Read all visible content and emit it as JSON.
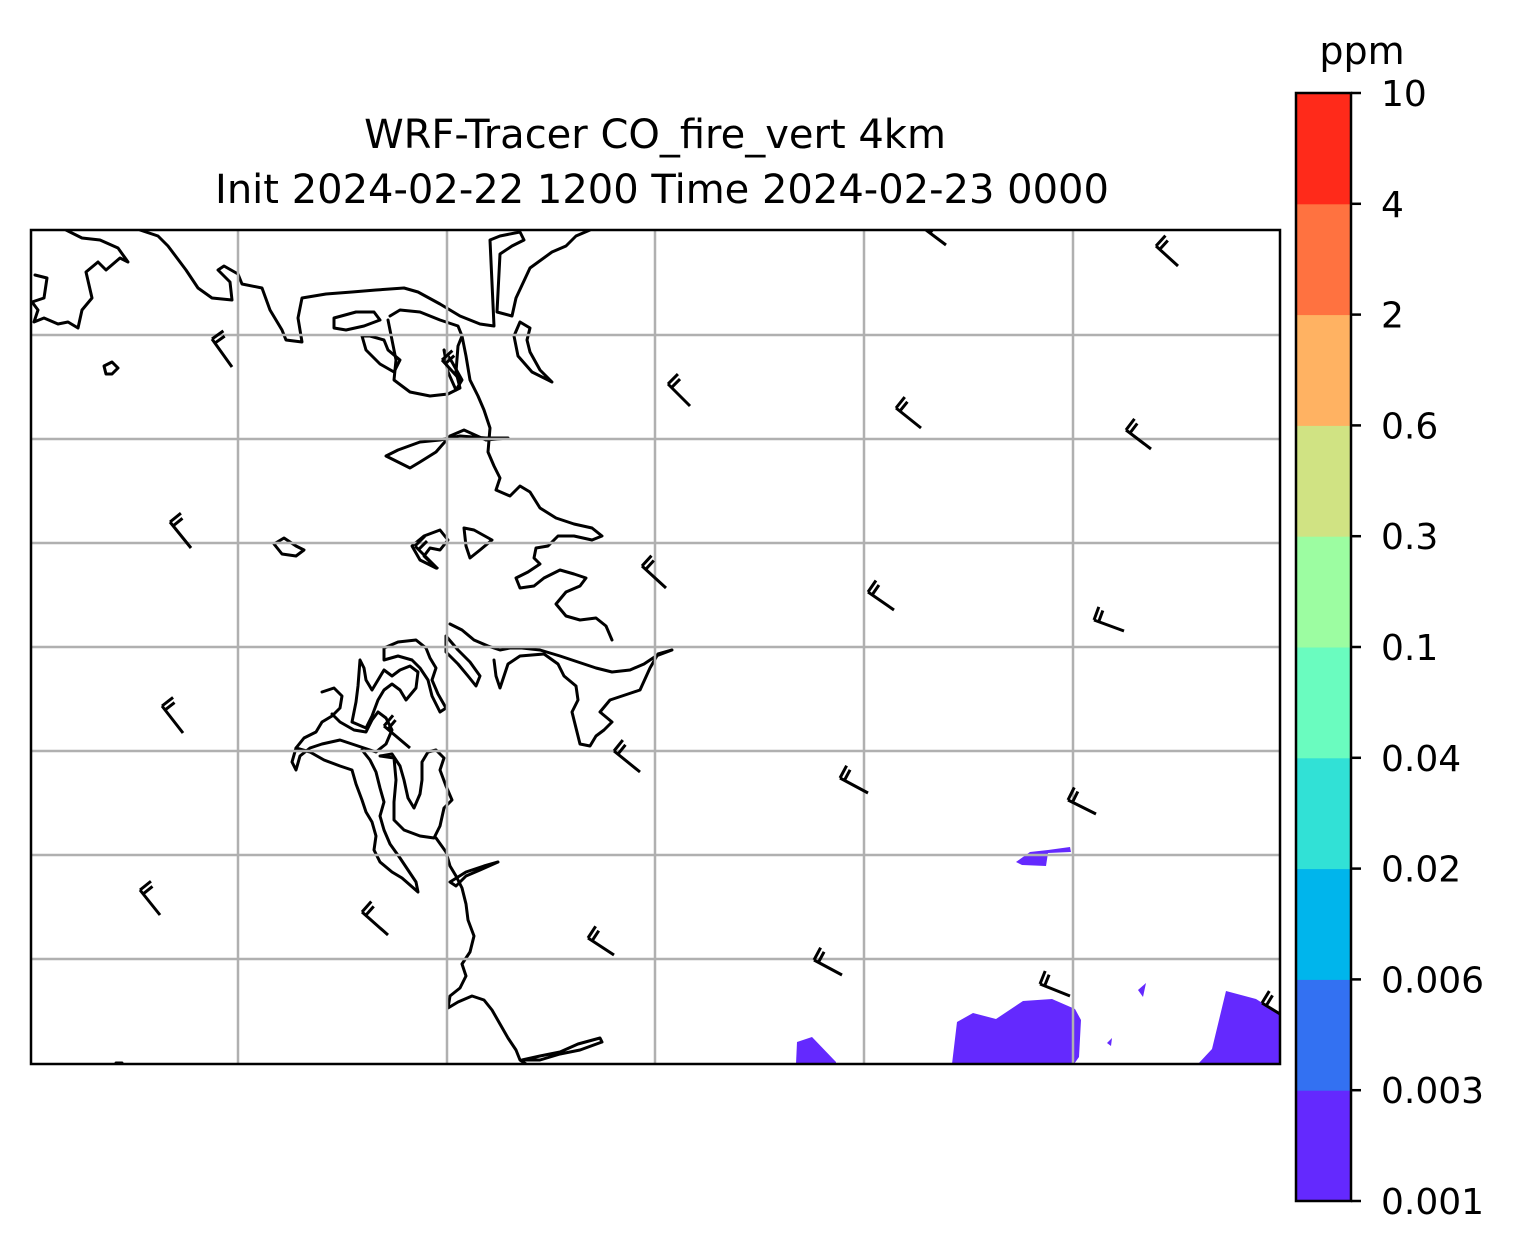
{
  "figure": {
    "title_line1": "WRF-Tracer CO_fire_vert 4km",
    "title_line2": "Init 2024-02-22 1200 Time 2024-02-23 0000"
  },
  "colorbar": {
    "unit": "ppm",
    "levels": [
      "0.001",
      "0.003",
      "0.006",
      "0.02",
      "0.04",
      "0.1",
      "0.3",
      "0.6",
      "2",
      "4",
      "10"
    ],
    "colors": [
      "#6429fe",
      "#3371f2",
      "#00b5ec",
      "#31e1d6",
      "#6afcbf",
      "#9cfda1",
      "#d0e383",
      "#ffb262",
      "#ff7240",
      "#ff2a1a"
    ]
  },
  "map": {
    "grid": true,
    "coastline_color": "#000000",
    "plume_level": "0.001-0.003",
    "wind_barbs": true
  }
}
